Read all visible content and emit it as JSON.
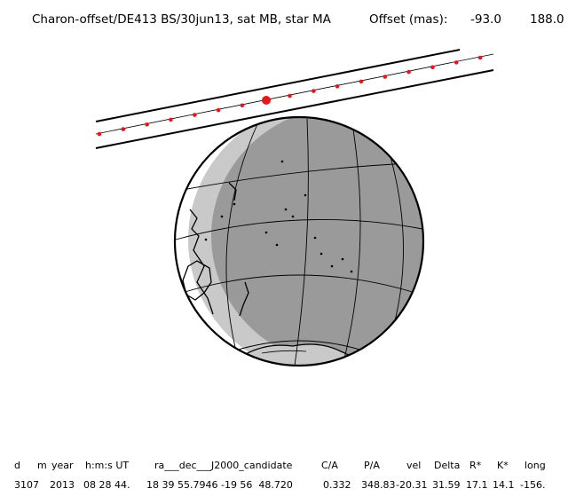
{
  "header": {
    "title": "Charon-offset/DE413 BS/30jun13, sat MB, star MA",
    "offset_label": "Offset (mas):",
    "offset_x": "-93.0",
    "offset_y": "188.0"
  },
  "colors": {
    "track": "#000000",
    "points": "#e8161b",
    "night": "#9a9a9a",
    "twilight": "#c9c9c9",
    "day": "#ffffff"
  },
  "table": {
    "headers": [
      "d",
      "m",
      "year",
      "h:m:s UT",
      "ra___dec___J2000_candidate",
      "C/A",
      "P/A",
      "vel",
      "Delta",
      "R*",
      "K*",
      "long"
    ],
    "values": [
      "31",
      "07",
      "2013",
      "08 28 44.",
      "18 39 55.7946 -19 56  48.720",
      "0.332",
      "348.83",
      "-20.31",
      "31.59",
      "17.1",
      "14.1",
      "-156."
    ]
  }
}
